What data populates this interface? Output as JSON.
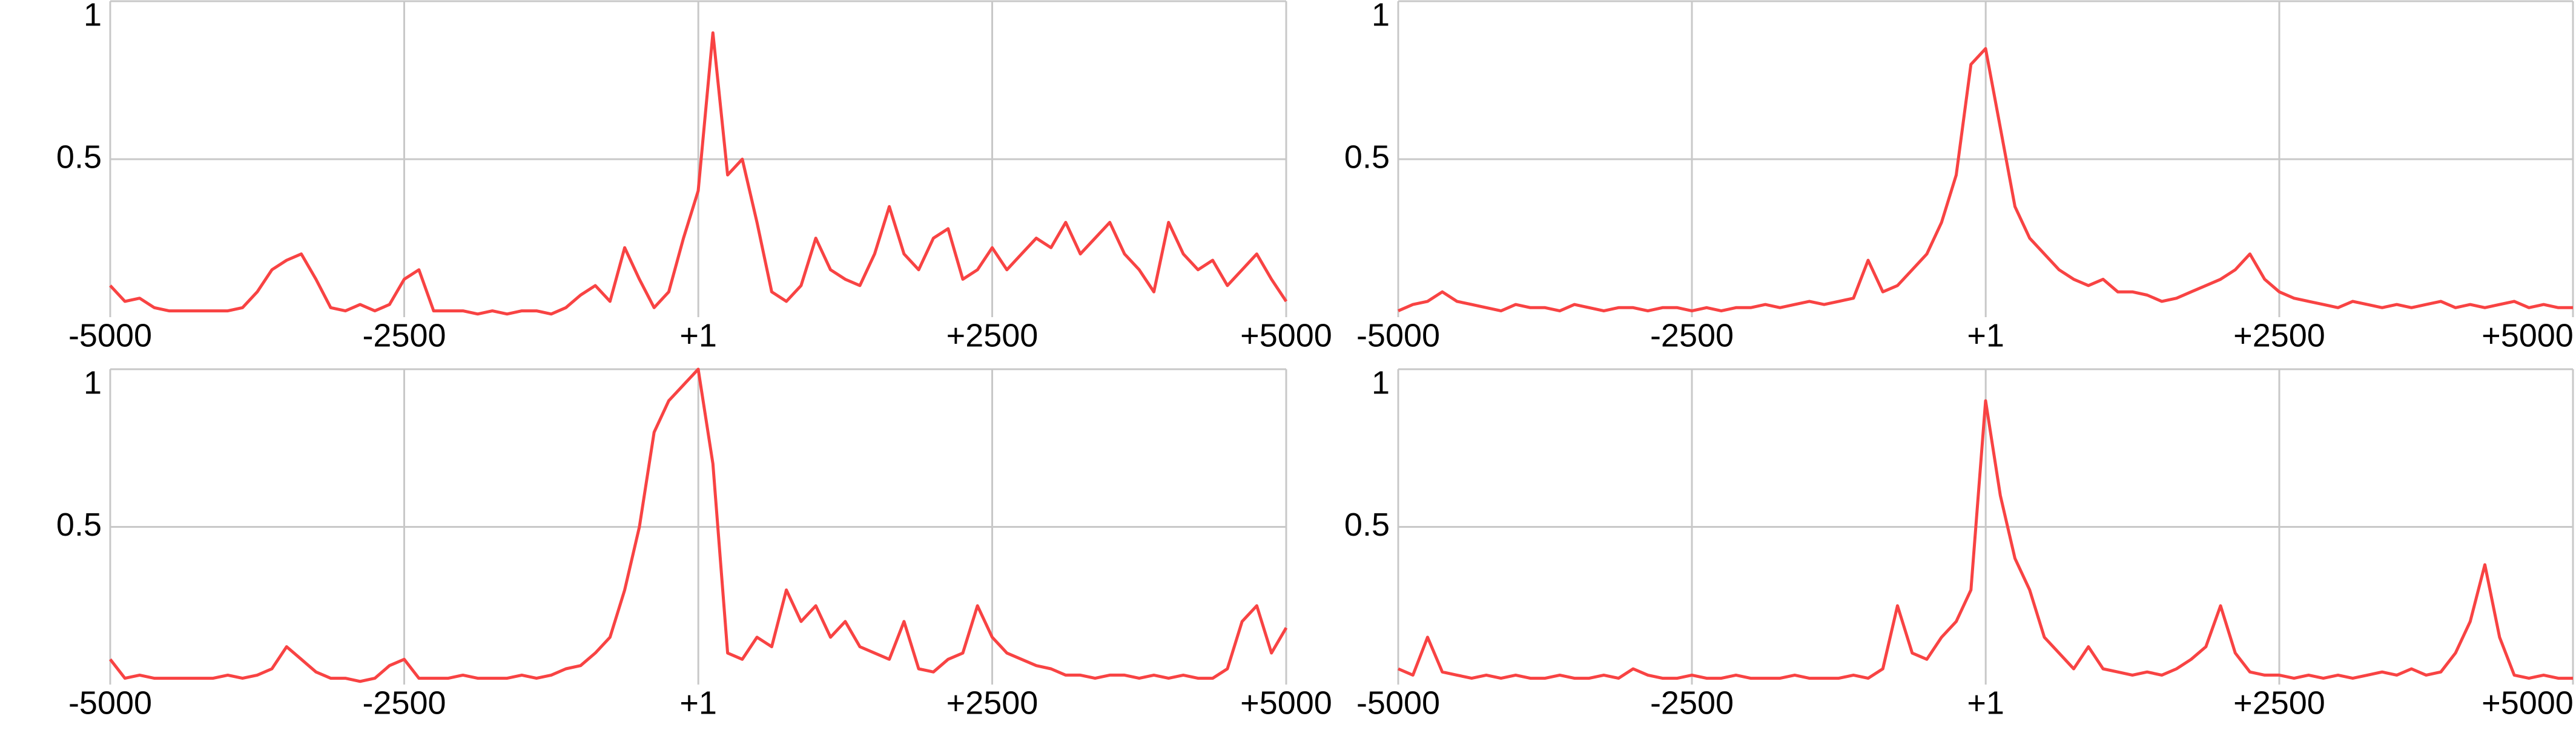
{
  "chart_data": [
    {
      "type": "line",
      "color": "#f84343",
      "xlim": [
        -5000,
        5000
      ],
      "ylim": [
        0,
        1
      ],
      "yticks": [
        0.5,
        1
      ],
      "xticks": [
        -5000,
        -2500,
        {
          "value": 1,
          "label": "+1"
        },
        {
          "value": 2500,
          "label": "+2500"
        },
        {
          "value": 5000,
          "label": "+5000"
        }
      ],
      "grid": true,
      "x": [
        -5000,
        -4875,
        -4750,
        -4625,
        -4500,
        -4375,
        -4250,
        -4125,
        -4000,
        -3875,
        -3750,
        -3625,
        -3500,
        -3375,
        -3250,
        -3125,
        -3000,
        -2875,
        -2750,
        -2625,
        -2500,
        -2375,
        -2250,
        -2125,
        -2000,
        -1875,
        -1750,
        -1625,
        -1500,
        -1375,
        -1250,
        -1125,
        -1000,
        -875,
        -750,
        -625,
        -500,
        -375,
        -250,
        -125,
        0,
        125,
        250,
        375,
        500,
        625,
        750,
        875,
        1000,
        1125,
        1250,
        1375,
        1500,
        1625,
        1750,
        1875,
        2000,
        2125,
        2250,
        2375,
        2500,
        2625,
        2750,
        2875,
        3000,
        3125,
        3250,
        3375,
        3500,
        3625,
        3750,
        3875,
        4000,
        4125,
        4250,
        4375,
        4500,
        4625,
        4750,
        4875,
        5000
      ],
      "values": [
        0.1,
        0.05,
        0.06,
        0.03,
        0.02,
        0.02,
        0.02,
        0.02,
        0.02,
        0.03,
        0.08,
        0.15,
        0.18,
        0.2,
        0.12,
        0.03,
        0.02,
        0.04,
        0.02,
        0.04,
        0.12,
        0.15,
        0.02,
        0.02,
        0.02,
        0.01,
        0.02,
        0.01,
        0.02,
        0.02,
        0.01,
        0.03,
        0.07,
        0.1,
        0.05,
        0.22,
        0.12,
        0.03,
        0.08,
        0.25,
        0.4,
        0.9,
        0.45,
        0.5,
        0.3,
        0.08,
        0.05,
        0.1,
        0.25,
        0.15,
        0.12,
        0.1,
        0.2,
        0.35,
        0.2,
        0.15,
        0.25,
        0.28,
        0.12,
        0.15,
        0.22,
        0.15,
        0.2,
        0.25,
        0.22,
        0.3,
        0.2,
        0.25,
        0.3,
        0.2,
        0.15,
        0.08,
        0.3,
        0.2,
        0.15,
        0.18,
        0.1,
        0.15,
        0.2,
        0.12,
        0.05
      ]
    },
    {
      "type": "line",
      "color": "#f84343",
      "xlim": [
        -5000,
        5000
      ],
      "ylim": [
        0,
        1
      ],
      "yticks": [
        0.5,
        1
      ],
      "xticks": [
        -5000,
        -2500,
        {
          "value": 1,
          "label": "+1"
        },
        {
          "value": 2500,
          "label": "+2500"
        },
        {
          "value": 5000,
          "label": "+5000"
        }
      ],
      "grid": true,
      "x": [
        -5000,
        -4875,
        -4750,
        -4625,
        -4500,
        -4375,
        -4250,
        -4125,
        -4000,
        -3875,
        -3750,
        -3625,
        -3500,
        -3375,
        -3250,
        -3125,
        -3000,
        -2875,
        -2750,
        -2625,
        -2500,
        -2375,
        -2250,
        -2125,
        -2000,
        -1875,
        -1750,
        -1625,
        -1500,
        -1375,
        -1250,
        -1125,
        -1000,
        -875,
        -750,
        -625,
        -500,
        -375,
        -250,
        -125,
        0,
        125,
        250,
        375,
        500,
        625,
        750,
        875,
        1000,
        1125,
        1250,
        1375,
        1500,
        1625,
        1750,
        1875,
        2000,
        2125,
        2250,
        2375,
        2500,
        2625,
        2750,
        2875,
        3000,
        3125,
        3250,
        3375,
        3500,
        3625,
        3750,
        3875,
        4000,
        4125,
        4250,
        4375,
        4500,
        4625,
        4750,
        4875,
        5000
      ],
      "values": [
        0.02,
        0.04,
        0.05,
        0.08,
        0.05,
        0.04,
        0.03,
        0.02,
        0.04,
        0.03,
        0.03,
        0.02,
        0.04,
        0.03,
        0.02,
        0.03,
        0.03,
        0.02,
        0.03,
        0.03,
        0.02,
        0.03,
        0.02,
        0.03,
        0.03,
        0.04,
        0.03,
        0.04,
        0.05,
        0.04,
        0.05,
        0.06,
        0.18,
        0.08,
        0.1,
        0.15,
        0.2,
        0.3,
        0.45,
        0.8,
        0.85,
        0.6,
        0.35,
        0.25,
        0.2,
        0.15,
        0.12,
        0.1,
        0.12,
        0.08,
        0.08,
        0.07,
        0.05,
        0.06,
        0.08,
        0.1,
        0.12,
        0.15,
        0.2,
        0.12,
        0.08,
        0.06,
        0.05,
        0.04,
        0.03,
        0.05,
        0.04,
        0.03,
        0.04,
        0.03,
        0.04,
        0.05,
        0.03,
        0.04,
        0.03,
        0.04,
        0.05,
        0.03,
        0.04,
        0.03,
        0.03
      ]
    },
    {
      "type": "line",
      "color": "#f84343",
      "xlim": [
        -5000,
        5000
      ],
      "ylim": [
        0,
        1
      ],
      "yticks": [
        0.5,
        1
      ],
      "xticks": [
        -5000,
        -2500,
        {
          "value": 1,
          "label": "+1"
        },
        {
          "value": 2500,
          "label": "+2500"
        },
        {
          "value": 5000,
          "label": "+5000"
        }
      ],
      "grid": true,
      "x": [
        -5000,
        -4875,
        -4750,
        -4625,
        -4500,
        -4375,
        -4250,
        -4125,
        -4000,
        -3875,
        -3750,
        -3625,
        -3500,
        -3375,
        -3250,
        -3125,
        -3000,
        -2875,
        -2750,
        -2625,
        -2500,
        -2375,
        -2250,
        -2125,
        -2000,
        -1875,
        -1750,
        -1625,
        -1500,
        -1375,
        -1250,
        -1125,
        -1000,
        -875,
        -750,
        -625,
        -500,
        -375,
        -250,
        -125,
        0,
        125,
        250,
        375,
        500,
        625,
        750,
        875,
        1000,
        1125,
        1250,
        1375,
        1500,
        1625,
        1750,
        1875,
        2000,
        2125,
        2250,
        2375,
        2500,
        2625,
        2750,
        2875,
        3000,
        3125,
        3250,
        3375,
        3500,
        3625,
        3750,
        3875,
        4000,
        4125,
        4250,
        4375,
        4500,
        4625,
        4750,
        4875,
        5000
      ],
      "values": [
        0.08,
        0.02,
        0.03,
        0.02,
        0.02,
        0.02,
        0.02,
        0.02,
        0.03,
        0.02,
        0.03,
        0.05,
        0.12,
        0.08,
        0.04,
        0.02,
        0.02,
        0.01,
        0.02,
        0.06,
        0.08,
        0.02,
        0.02,
        0.02,
        0.03,
        0.02,
        0.02,
        0.02,
        0.03,
        0.02,
        0.03,
        0.05,
        0.06,
        0.1,
        0.15,
        0.3,
        0.5,
        0.8,
        0.9,
        0.95,
        1.0,
        0.7,
        0.1,
        0.08,
        0.15,
        0.12,
        0.3,
        0.2,
        0.25,
        0.15,
        0.2,
        0.12,
        0.1,
        0.08,
        0.2,
        0.05,
        0.04,
        0.08,
        0.1,
        0.25,
        0.15,
        0.1,
        0.08,
        0.06,
        0.05,
        0.03,
        0.03,
        0.02,
        0.03,
        0.03,
        0.02,
        0.03,
        0.02,
        0.03,
        0.02,
        0.02,
        0.05,
        0.2,
        0.25,
        0.1,
        0.18
      ]
    },
    {
      "type": "line",
      "color": "#f84343",
      "xlim": [
        -5000,
        5000
      ],
      "ylim": [
        0,
        1
      ],
      "yticks": [
        0.5,
        1
      ],
      "xticks": [
        -5000,
        -2500,
        {
          "value": 1,
          "label": "+1"
        },
        {
          "value": 2500,
          "label": "+2500"
        },
        {
          "value": 5000,
          "label": "+5000"
        }
      ],
      "grid": true,
      "x": [
        -5000,
        -4875,
        -4750,
        -4625,
        -4500,
        -4375,
        -4250,
        -4125,
        -4000,
        -3875,
        -3750,
        -3625,
        -3500,
        -3375,
        -3250,
        -3125,
        -3000,
        -2875,
        -2750,
        -2625,
        -2500,
        -2375,
        -2250,
        -2125,
        -2000,
        -1875,
        -1750,
        -1625,
        -1500,
        -1375,
        -1250,
        -1125,
        -1000,
        -875,
        -750,
        -625,
        -500,
        -375,
        -250,
        -125,
        0,
        125,
        250,
        375,
        500,
        625,
        750,
        875,
        1000,
        1125,
        1250,
        1375,
        1500,
        1625,
        1750,
        1875,
        2000,
        2125,
        2250,
        2375,
        2500,
        2625,
        2750,
        2875,
        3000,
        3125,
        3250,
        3375,
        3500,
        3625,
        3750,
        3875,
        4000,
        4125,
        4250,
        4375,
        4500,
        4625,
        4750,
        4875,
        5000
      ],
      "values": [
        0.05,
        0.03,
        0.15,
        0.04,
        0.03,
        0.02,
        0.03,
        0.02,
        0.03,
        0.02,
        0.02,
        0.03,
        0.02,
        0.02,
        0.03,
        0.02,
        0.05,
        0.03,
        0.02,
        0.02,
        0.03,
        0.02,
        0.02,
        0.03,
        0.02,
        0.02,
        0.02,
        0.03,
        0.02,
        0.02,
        0.02,
        0.03,
        0.02,
        0.05,
        0.25,
        0.1,
        0.08,
        0.15,
        0.2,
        0.3,
        0.9,
        0.6,
        0.4,
        0.3,
        0.15,
        0.1,
        0.05,
        0.12,
        0.05,
        0.04,
        0.03,
        0.04,
        0.03,
        0.05,
        0.08,
        0.12,
        0.25,
        0.1,
        0.04,
        0.03,
        0.03,
        0.02,
        0.03,
        0.02,
        0.03,
        0.02,
        0.03,
        0.04,
        0.03,
        0.05,
        0.03,
        0.04,
        0.1,
        0.2,
        0.38,
        0.15,
        0.03,
        0.02,
        0.03,
        0.02,
        0.02
      ]
    }
  ]
}
